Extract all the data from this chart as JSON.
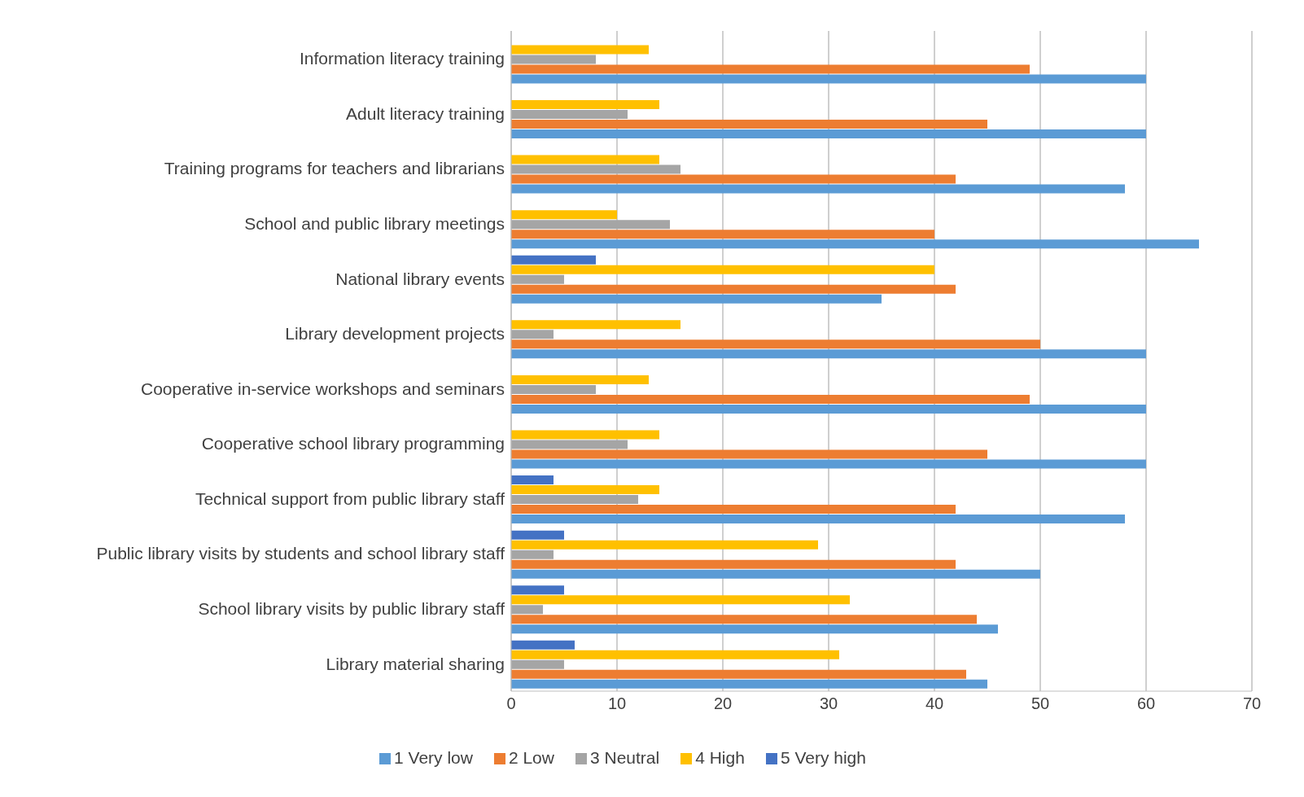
{
  "chart_data": {
    "type": "bar",
    "orientation": "horizontal",
    "categories": [
      "Information literacy training",
      "Adult literacy training",
      "Training programs for teachers and librarians",
      "School and public library meetings",
      "National library events",
      "Library development projects",
      "Cooperative in-service workshops and seminars",
      "Cooperative school library programming",
      "Technical support from public library staff",
      "Public library visits by students and school library staff",
      "School library visits by public library staff",
      "Library material sharing"
    ],
    "series": [
      {
        "name": "5 Very high",
        "color": "#4472c4",
        "values": [
          null,
          null,
          null,
          null,
          8,
          null,
          null,
          null,
          4,
          5,
          5,
          6
        ]
      },
      {
        "name": "4 High",
        "color": "#ffc000",
        "values": [
          13,
          14,
          14,
          10,
          40,
          16,
          13,
          14,
          14,
          29,
          32,
          31
        ]
      },
      {
        "name": "3 Neutral",
        "color": "#a5a5a5",
        "values": [
          8,
          11,
          16,
          15,
          5,
          4,
          8,
          11,
          12,
          4,
          3,
          5
        ]
      },
      {
        "name": "2 Low",
        "color": "#ed7d31",
        "values": [
          49,
          45,
          42,
          40,
          42,
          50,
          49,
          45,
          42,
          42,
          44,
          43
        ]
      },
      {
        "name": "1 Very low",
        "color": "#5b9bd5",
        "values": [
          60,
          60,
          58,
          65,
          35,
          60,
          60,
          60,
          58,
          50,
          46,
          45
        ]
      }
    ],
    "xlim": [
      0,
      70
    ],
    "xticks": [
      0,
      10,
      20,
      30,
      40,
      50,
      60,
      70
    ],
    "grid": "x",
    "legend": "bottom"
  }
}
